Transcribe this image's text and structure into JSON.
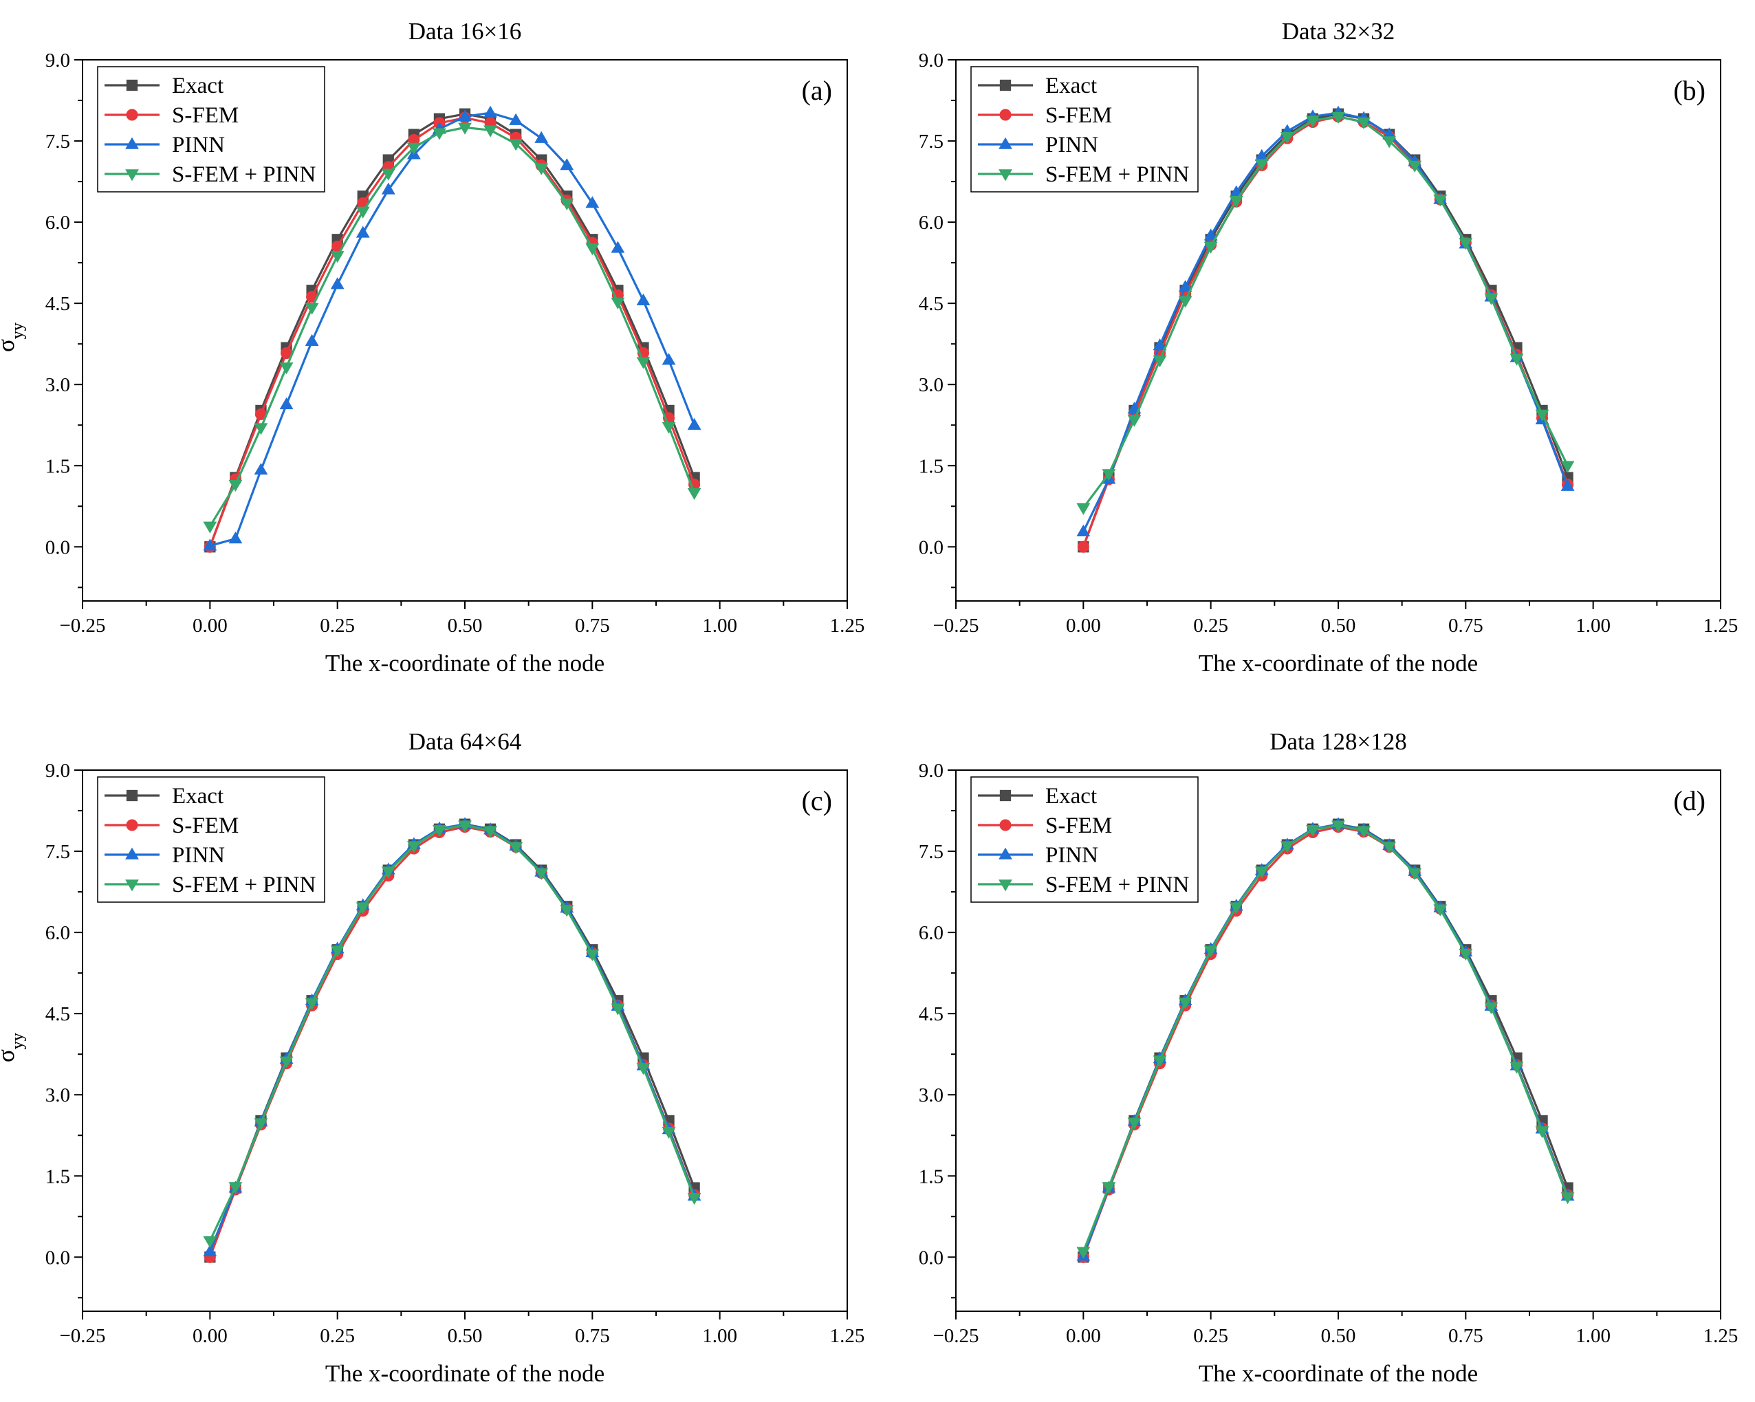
{
  "colors": {
    "Exact": "#4a4a4a",
    "S-FEM": "#e8383d",
    "PINN": "#1f6fd6",
    "S-FEM + PINN": "#35a86a"
  },
  "chart_data": [
    {
      "type": "line",
      "panel": "(a)",
      "title": "Data 16×16",
      "xlabel": "The x-coordinate of the node",
      "ylabel": "σ",
      "ylabel_sub": "yy",
      "xlim": [
        -0.25,
        1.25
      ],
      "ylim": [
        -1.0,
        9.0
      ],
      "xticks": [
        "−0.25",
        "0.00",
        "0.25",
        "0.50",
        "0.75",
        "1.00",
        "1.25"
      ],
      "yticks": [
        "0.0",
        "1.5",
        "3.0",
        "4.5",
        "6.0",
        "7.5",
        "9.0"
      ],
      "legend_position": "top-left",
      "x": [
        0.0,
        0.05,
        0.1,
        0.15,
        0.2,
        0.25,
        0.3,
        0.35,
        0.4,
        0.45,
        0.5,
        0.55,
        0.6,
        0.65,
        0.7,
        0.75,
        0.8,
        0.85,
        0.9,
        0.95
      ],
      "series": [
        {
          "name": "Exact",
          "marker": "square",
          "values": [
            0.0,
            1.28,
            2.52,
            3.68,
            4.74,
            5.68,
            6.48,
            7.15,
            7.62,
            7.91,
            8.0,
            7.91,
            7.62,
            7.15,
            6.48,
            5.68,
            4.74,
            3.68,
            2.52,
            1.28
          ]
        },
        {
          "name": "S-FEM",
          "marker": "circle",
          "values": [
            0.0,
            1.25,
            2.45,
            3.58,
            4.62,
            5.55,
            6.35,
            7.02,
            7.52,
            7.83,
            7.93,
            7.83,
            7.56,
            7.05,
            6.4,
            5.62,
            4.65,
            3.58,
            2.38,
            1.15
          ]
        },
        {
          "name": "PINN",
          "marker": "triangle-up",
          "values": [
            0.02,
            0.15,
            1.42,
            2.63,
            3.8,
            4.85,
            5.8,
            6.6,
            7.25,
            7.72,
            7.95,
            8.02,
            7.88,
            7.55,
            7.05,
            6.35,
            5.52,
            4.55,
            3.45,
            2.25
          ]
        },
        {
          "name": "S-FEM + PINN",
          "marker": "triangle-down",
          "values": [
            0.38,
            1.15,
            2.2,
            3.32,
            4.42,
            5.38,
            6.2,
            6.9,
            7.38,
            7.65,
            7.75,
            7.7,
            7.45,
            7.0,
            6.35,
            5.52,
            4.52,
            3.42,
            2.22,
            1.0
          ]
        }
      ]
    },
    {
      "type": "line",
      "panel": "(b)",
      "title": "Data 32×32",
      "xlabel": "The x-coordinate of the node",
      "ylabel": "σ",
      "ylabel_sub": "yy",
      "xlim": [
        -0.25,
        1.25
      ],
      "ylim": [
        -1.0,
        9.0
      ],
      "xticks": [
        "−0.25",
        "0.00",
        "0.25",
        "0.50",
        "0.75",
        "1.00",
        "1.25"
      ],
      "yticks": [
        "0.0",
        "1.5",
        "3.0",
        "4.5",
        "6.0",
        "7.5",
        "9.0"
      ],
      "legend_position": "top-left",
      "x": [
        0.0,
        0.05,
        0.1,
        0.15,
        0.2,
        0.25,
        0.3,
        0.35,
        0.4,
        0.45,
        0.5,
        0.55,
        0.6,
        0.65,
        0.7,
        0.75,
        0.8,
        0.85,
        0.9,
        0.95
      ],
      "series": [
        {
          "name": "Exact",
          "marker": "square",
          "values": [
            0.0,
            1.28,
            2.52,
            3.68,
            4.74,
            5.68,
            6.48,
            7.15,
            7.62,
            7.91,
            8.0,
            7.91,
            7.62,
            7.15,
            6.48,
            5.68,
            4.74,
            3.68,
            2.52,
            1.28
          ]
        },
        {
          "name": "S-FEM",
          "marker": "circle",
          "values": [
            0.0,
            1.25,
            2.45,
            3.58,
            4.68,
            5.58,
            6.38,
            7.05,
            7.55,
            7.85,
            7.95,
            7.85,
            7.58,
            7.08,
            6.42,
            5.62,
            4.65,
            3.55,
            2.38,
            1.15
          ]
        },
        {
          "name": "PINN",
          "marker": "triangle-up",
          "values": [
            0.28,
            1.25,
            2.55,
            3.72,
            4.8,
            5.75,
            6.55,
            7.22,
            7.68,
            7.95,
            8.02,
            7.92,
            7.62,
            7.12,
            6.42,
            5.6,
            4.62,
            3.5,
            2.35,
            1.12
          ]
        },
        {
          "name": "S-FEM + PINN",
          "marker": "triangle-down",
          "values": [
            0.72,
            1.35,
            2.35,
            3.45,
            4.55,
            5.55,
            6.4,
            7.08,
            7.58,
            7.88,
            7.95,
            7.85,
            7.5,
            7.05,
            6.42,
            5.62,
            4.6,
            3.48,
            2.45,
            1.5
          ]
        }
      ]
    },
    {
      "type": "line",
      "panel": "(c)",
      "title": "Data 64×64",
      "xlabel": "The x-coordinate of the node",
      "ylabel": "σ",
      "ylabel_sub": "yy",
      "xlim": [
        -0.25,
        1.25
      ],
      "ylim": [
        -1.0,
        9.0
      ],
      "xticks": [
        "−0.25",
        "0.00",
        "0.25",
        "0.50",
        "0.75",
        "1.00",
        "1.25"
      ],
      "yticks": [
        "0.0",
        "1.5",
        "3.0",
        "4.5",
        "6.0",
        "7.5",
        "9.0"
      ],
      "legend_position": "top-left",
      "x": [
        0.0,
        0.05,
        0.1,
        0.15,
        0.2,
        0.25,
        0.3,
        0.35,
        0.4,
        0.45,
        0.5,
        0.55,
        0.6,
        0.65,
        0.7,
        0.75,
        0.8,
        0.85,
        0.9,
        0.95
      ],
      "series": [
        {
          "name": "Exact",
          "marker": "square",
          "values": [
            0.0,
            1.28,
            2.52,
            3.68,
            4.74,
            5.68,
            6.48,
            7.15,
            7.62,
            7.91,
            8.0,
            7.91,
            7.62,
            7.15,
            6.48,
            5.68,
            4.74,
            3.68,
            2.52,
            1.28
          ]
        },
        {
          "name": "S-FEM",
          "marker": "circle",
          "values": [
            0.0,
            1.25,
            2.45,
            3.58,
            4.65,
            5.6,
            6.4,
            7.05,
            7.55,
            7.85,
            7.95,
            7.86,
            7.58,
            7.1,
            6.44,
            5.62,
            4.65,
            3.55,
            2.38,
            1.15
          ]
        },
        {
          "name": "PINN",
          "marker": "triangle-up",
          "values": [
            0.1,
            1.28,
            2.5,
            3.66,
            4.74,
            5.7,
            6.5,
            7.16,
            7.63,
            7.92,
            8.0,
            7.9,
            7.6,
            7.12,
            6.45,
            5.63,
            4.64,
            3.54,
            2.36,
            1.13
          ]
        },
        {
          "name": "S-FEM + PINN",
          "marker": "triangle-down",
          "values": [
            0.3,
            1.3,
            2.48,
            3.62,
            4.7,
            5.67,
            6.47,
            7.13,
            7.6,
            7.9,
            7.98,
            7.88,
            7.58,
            7.1,
            6.42,
            5.6,
            4.6,
            3.5,
            2.32,
            1.1
          ]
        }
      ]
    },
    {
      "type": "line",
      "panel": "(d)",
      "title": "Data 128×128",
      "xlabel": "The x-coordinate of the node",
      "ylabel": "σ",
      "ylabel_sub": "yy",
      "xlim": [
        -0.25,
        1.25
      ],
      "ylim": [
        -1.0,
        9.0
      ],
      "xticks": [
        "−0.25",
        "0.00",
        "0.25",
        "0.50",
        "0.75",
        "1.00",
        "1.25"
      ],
      "yticks": [
        "0.0",
        "1.5",
        "3.0",
        "4.5",
        "6.0",
        "7.5",
        "9.0"
      ],
      "legend_position": "top-left",
      "x": [
        0.0,
        0.05,
        0.1,
        0.15,
        0.2,
        0.25,
        0.3,
        0.35,
        0.4,
        0.45,
        0.5,
        0.55,
        0.6,
        0.65,
        0.7,
        0.75,
        0.8,
        0.85,
        0.9,
        0.95
      ],
      "series": [
        {
          "name": "Exact",
          "marker": "square",
          "values": [
            0.0,
            1.28,
            2.52,
            3.68,
            4.74,
            5.68,
            6.48,
            7.15,
            7.62,
            7.91,
            8.0,
            7.91,
            7.62,
            7.15,
            6.48,
            5.68,
            4.74,
            3.68,
            2.52,
            1.28
          ]
        },
        {
          "name": "S-FEM",
          "marker": "circle",
          "values": [
            0.0,
            1.25,
            2.45,
            3.58,
            4.65,
            5.6,
            6.4,
            7.05,
            7.55,
            7.85,
            7.95,
            7.86,
            7.58,
            7.1,
            6.44,
            5.62,
            4.65,
            3.55,
            2.38,
            1.15
          ]
        },
        {
          "name": "PINN",
          "marker": "triangle-up",
          "values": [
            0.02,
            1.28,
            2.51,
            3.67,
            4.74,
            5.69,
            6.49,
            7.15,
            7.62,
            7.91,
            8.0,
            7.9,
            7.61,
            7.13,
            6.46,
            5.64,
            4.64,
            3.54,
            2.37,
            1.13
          ]
        },
        {
          "name": "S-FEM + PINN",
          "marker": "triangle-down",
          "values": [
            0.1,
            1.3,
            2.49,
            3.64,
            4.71,
            5.67,
            6.47,
            7.13,
            7.6,
            7.9,
            7.98,
            7.88,
            7.59,
            7.1,
            6.43,
            5.61,
            4.62,
            3.52,
            2.33,
            1.11
          ]
        }
      ]
    }
  ]
}
